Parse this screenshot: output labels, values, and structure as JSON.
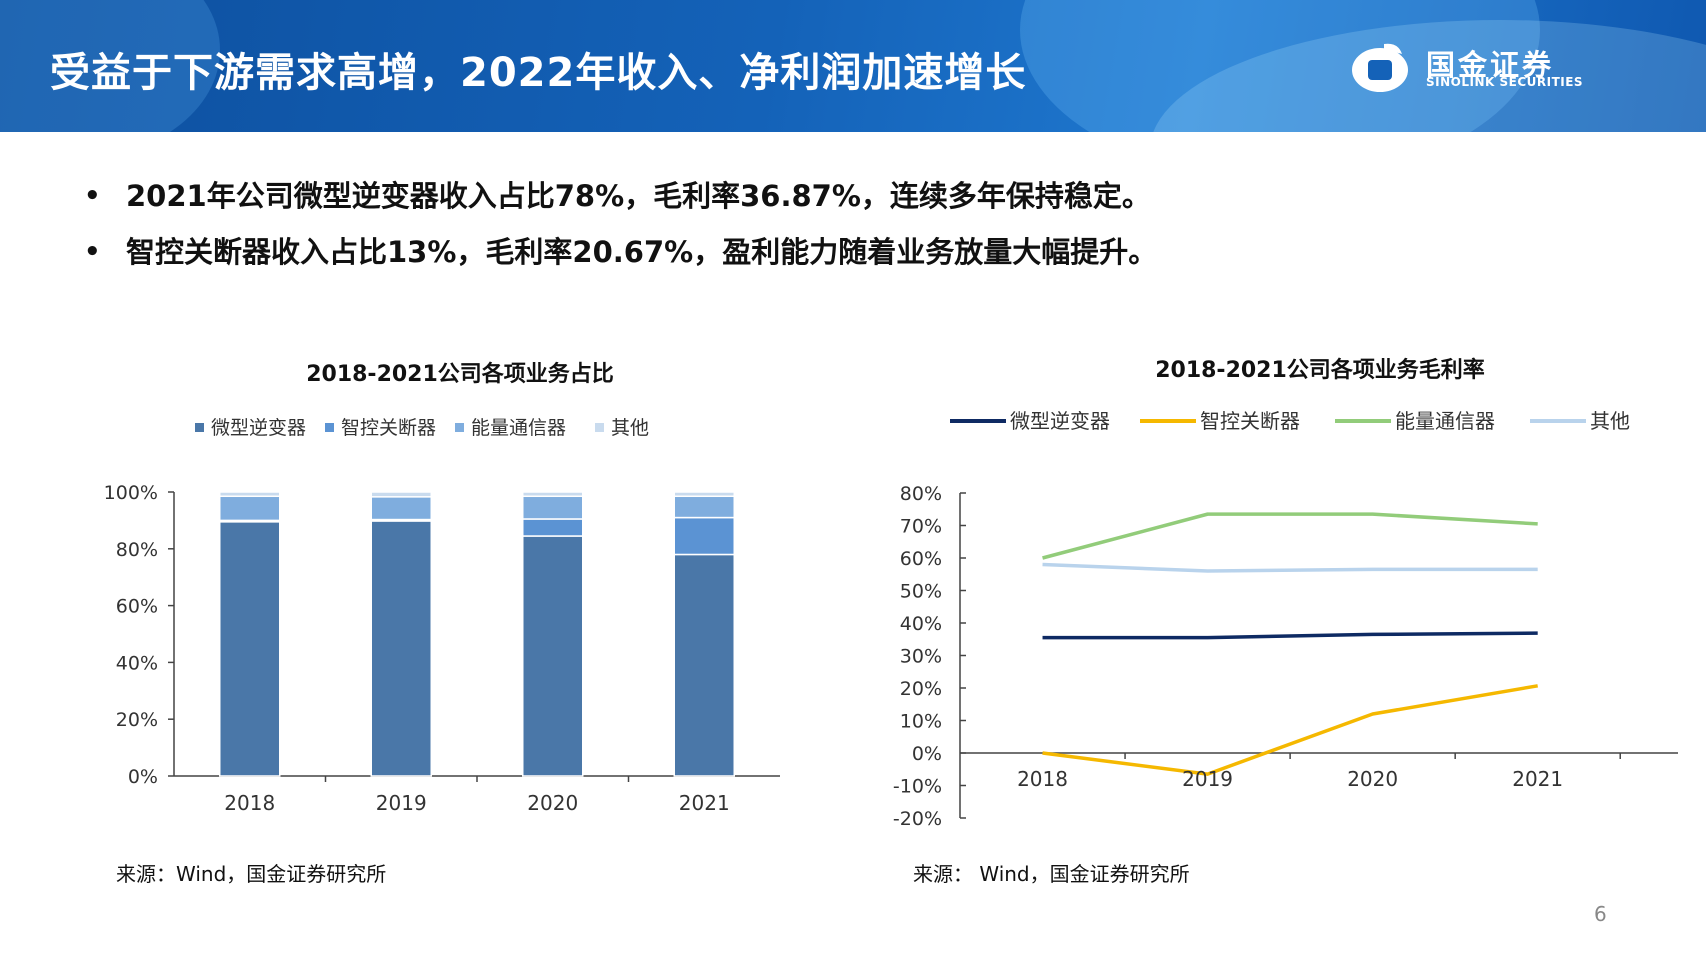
{
  "header": {
    "title": "受益于下游需求高增，2022年收入、净利润加速增长",
    "logo_cn": "国金证券",
    "logo_en": "SINOLINK SECURITIES"
  },
  "bullets": [
    "2021年公司微型逆变器收入占比78%，毛利率36.87%，连续多年保持稳定。",
    "智控关断器收入占比13%，毛利率20.67%，盈利能力随着业务放量大幅提升。"
  ],
  "bullet_marker": "•",
  "colors": {
    "header_bg": "#1462b8",
    "bar_inverter": "#4a77a8",
    "bar_switch": "#5b93d3",
    "bar_energy": "#7fadde",
    "bar_other": "#c9dbee",
    "line_inverter": "#0e2a63",
    "line_switch": "#f5b800",
    "line_energy": "#92cc7a",
    "line_other": "#b9d3ec"
  },
  "chart_data": [
    {
      "type": "bar",
      "stacked": true,
      "title": "2018-2021公司各项业务占比",
      "categories": [
        "2018",
        "2019",
        "2020",
        "2021"
      ],
      "series": [
        {
          "name": "微型逆变器",
          "values": [
            89.5,
            89.8,
            84.5,
            78
          ]
        },
        {
          "name": "智控关断器",
          "values": [
            0.5,
            0.5,
            6,
            13
          ]
        },
        {
          "name": "能量通信器",
          "values": [
            8.5,
            8,
            8,
            7.5
          ]
        },
        {
          "name": "其他",
          "values": [
            1.5,
            1.7,
            1.5,
            1.5
          ]
        }
      ],
      "ylim": [
        0,
        100
      ],
      "yticks": [
        "0%",
        "20%",
        "40%",
        "60%",
        "80%",
        "100%"
      ],
      "legend": "top",
      "source": "来源：Wind，国金证券研究所"
    },
    {
      "type": "line",
      "title": "2018-2021公司各项业务毛利率",
      "categories": [
        "2018",
        "2019",
        "2020",
        "2021"
      ],
      "series": [
        {
          "name": "微型逆变器",
          "values": [
            35.5,
            35.5,
            36.5,
            36.87
          ]
        },
        {
          "name": "智控关断器",
          "values": [
            0,
            -6.5,
            12,
            20.67
          ]
        },
        {
          "name": "能量通信器",
          "values": [
            60,
            73.5,
            73.5,
            70.5
          ]
        },
        {
          "name": "其他",
          "values": [
            58,
            56,
            56.5,
            56.5
          ]
        }
      ],
      "ylim": [
        -20,
        80
      ],
      "yticks": [
        "-20%",
        "-10%",
        "0%",
        "10%",
        "20%",
        "30%",
        "40%",
        "50%",
        "60%",
        "70%",
        "80%"
      ],
      "legend": "top",
      "source": "来源： Wind，国金证券研究所"
    }
  ],
  "page_number": "6"
}
